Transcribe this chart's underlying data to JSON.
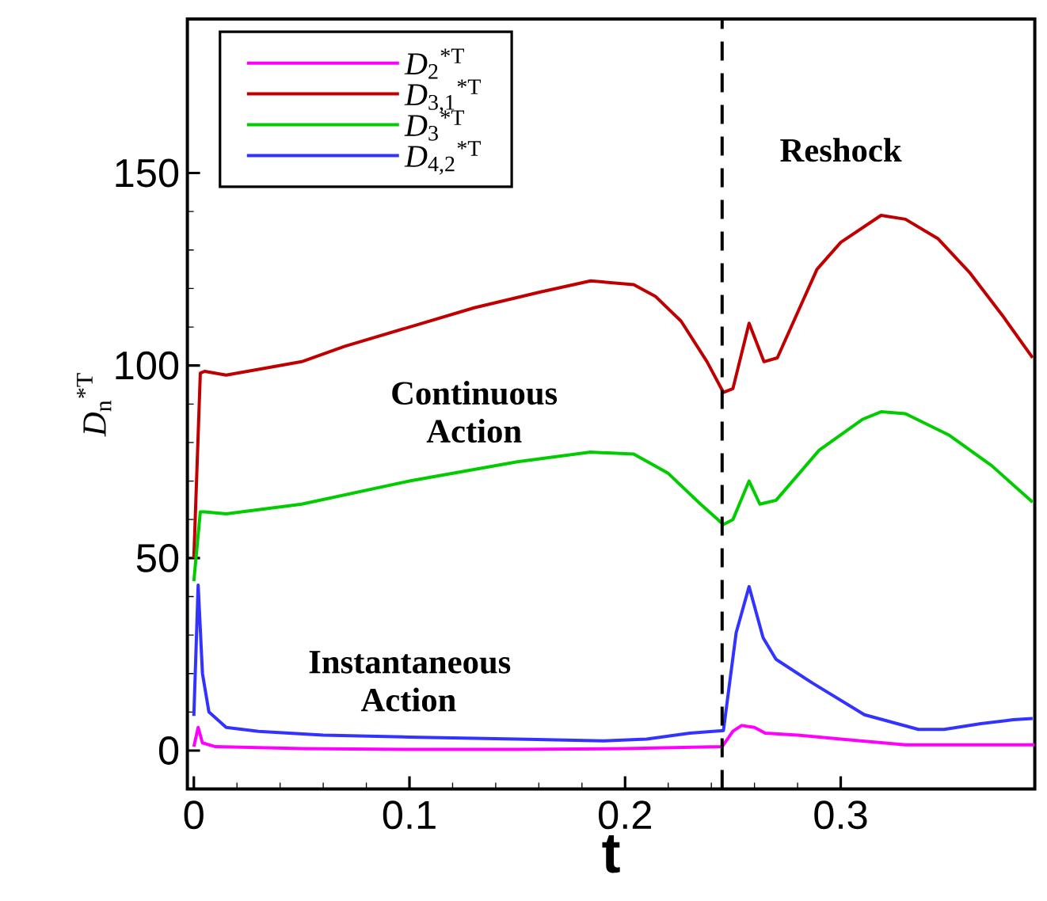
{
  "chart_data": {
    "type": "line",
    "xlabel": "**t**",
    "ylabel": "*D*$_{n}$$^{*T}$",
    "xlim": [
      -0.003,
      0.39
    ],
    "ylim": [
      -10,
      190
    ],
    "xticks": [
      0,
      0.1,
      0.2,
      0.3
    ],
    "yticks": [
      0,
      50,
      100,
      150
    ],
    "legend": "top left",
    "ref_lines": [
      {
        "axis": "x",
        "value": 0.245,
        "line_style": "dashed",
        "color": "#000000"
      }
    ],
    "annotations": [
      "Continuous Action",
      "Instantaneous Action",
      "Reshock"
    ],
    "series": [
      {
        "name": "*D*$_{2}$$^{*T}$",
        "color": "#ff00ff",
        "x": [
          0.0,
          0.002,
          0.004,
          0.01,
          0.05,
          0.1,
          0.15,
          0.2,
          0.245,
          0.25,
          0.254,
          0.26,
          0.265,
          0.28,
          0.3,
          0.33,
          0.36,
          0.39
        ],
        "values": [
          1,
          6,
          2,
          1,
          0.5,
          0.3,
          0.3,
          0.5,
          1,
          5,
          6.5,
          6,
          4.5,
          4,
          3,
          1.5,
          1.5,
          1.5
        ]
      },
      {
        "name": "*D*$_{3,1}$$^{*T}$",
        "color": "#c00000",
        "x": [
          0.0,
          0.003,
          0.005,
          0.015,
          0.03,
          0.05,
          0.07,
          0.1,
          0.13,
          0.16,
          0.184,
          0.204,
          0.214,
          0.226,
          0.238,
          0.2456,
          0.25,
          0.2575,
          0.2644,
          0.2706,
          0.289,
          0.3,
          0.3187,
          0.33,
          0.345,
          0.36,
          0.375,
          0.389
        ],
        "values": [
          50,
          98,
          98.5,
          97.5,
          99,
          101,
          105,
          110,
          115,
          119,
          122,
          121,
          118,
          111.5,
          101,
          93,
          94,
          111,
          101,
          102,
          125,
          132,
          139,
          138,
          133,
          124,
          113,
          102
        ]
      },
      {
        "name": "*D*$_{3}$$^{*T}$",
        "color": "#00cc00",
        "x": [
          0.0,
          0.003,
          0.005,
          0.015,
          0.05,
          0.1,
          0.15,
          0.184,
          0.204,
          0.22,
          0.235,
          0.2456,
          0.25,
          0.2575,
          0.2625,
          0.27,
          0.29,
          0.31,
          0.3187,
          0.33,
          0.35,
          0.37,
          0.389
        ],
        "values": [
          44,
          62,
          62,
          61.5,
          64,
          70,
          75,
          77.5,
          77,
          72,
          64,
          58.7,
          60,
          70,
          64,
          65,
          78,
          86,
          88,
          87.5,
          82,
          74,
          64.5
        ]
      },
      {
        "name": "*D*$_{4,2}$$^{*T}$",
        "color": "#3333ff",
        "x": [
          0.0,
          0.002,
          0.004,
          0.007,
          0.015,
          0.03,
          0.06,
          0.1,
          0.15,
          0.19,
          0.21,
          0.23,
          0.2456,
          0.2515,
          0.2575,
          0.264,
          0.27,
          0.287,
          0.311,
          0.336,
          0.348,
          0.365,
          0.38,
          0.389
        ],
        "values": [
          9,
          43,
          20,
          10,
          6,
          5,
          4,
          3.5,
          3,
          2.5,
          3,
          4.5,
          5.2,
          30.6,
          42.6,
          29.3,
          23.7,
          17.5,
          9.3,
          5.5,
          5.5,
          7,
          8,
          8.3
        ]
      }
    ]
  }
}
